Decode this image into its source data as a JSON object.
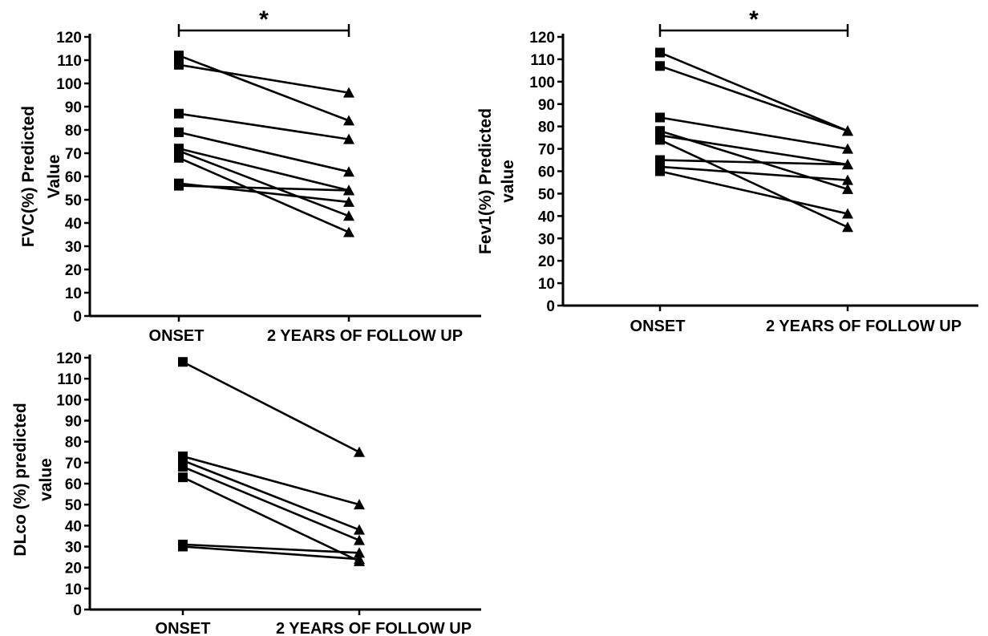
{
  "chart_data": [
    {
      "type": "line",
      "id": "fvc",
      "ylabel": [
        "FVC(%) Predicted",
        "Value"
      ],
      "categories": [
        "ONSET",
        "2 YEARS OF FOLLOW UP"
      ],
      "ylim": [
        0,
        120
      ],
      "yticks": [
        0,
        10,
        20,
        30,
        40,
        50,
        60,
        70,
        80,
        90,
        100,
        110,
        120
      ],
      "significance": "*",
      "series": [
        {
          "values": [
            112,
            84
          ]
        },
        {
          "values": [
            108,
            96
          ]
        },
        {
          "values": [
            87,
            76
          ]
        },
        {
          "values": [
            79,
            62
          ]
        },
        {
          "values": [
            72,
            54
          ]
        },
        {
          "values": [
            71,
            43
          ]
        },
        {
          "values": [
            68,
            36
          ]
        },
        {
          "values": [
            57,
            49
          ]
        },
        {
          "values": [
            56,
            54
          ]
        }
      ]
    },
    {
      "type": "line",
      "id": "fev1",
      "ylabel": [
        "Fev1(%) Predicted",
        "value"
      ],
      "categories": [
        "ONSET",
        "2 YEARS OF FOLLOW UP"
      ],
      "ylim": [
        0,
        120
      ],
      "yticks": [
        0,
        10,
        20,
        30,
        40,
        50,
        60,
        70,
        80,
        90,
        100,
        110,
        120
      ],
      "significance": "*",
      "series": [
        {
          "values": [
            113,
            78
          ]
        },
        {
          "values": [
            107,
            78
          ]
        },
        {
          "values": [
            84,
            70
          ]
        },
        {
          "values": [
            78,
            52
          ]
        },
        {
          "values": [
            76,
            63
          ]
        },
        {
          "values": [
            74,
            35
          ]
        },
        {
          "values": [
            65,
            63
          ]
        },
        {
          "values": [
            62,
            56
          ]
        },
        {
          "values": [
            60,
            41
          ]
        }
      ]
    },
    {
      "type": "line",
      "id": "dlco",
      "ylabel": [
        "DLco (%) predicted",
        "value"
      ],
      "categories": [
        "ONSET",
        "2 YEARS OF FOLLOW UP"
      ],
      "ylim": [
        0,
        120
      ],
      "yticks": [
        0,
        10,
        20,
        30,
        40,
        50,
        60,
        70,
        80,
        90,
        100,
        110,
        120
      ],
      "series": [
        {
          "values": [
            118,
            75
          ]
        },
        {
          "values": [
            73,
            50
          ]
        },
        {
          "values": [
            71,
            38
          ]
        },
        {
          "values": [
            68,
            33
          ]
        },
        {
          "values": [
            63,
            23
          ]
        },
        {
          "values": [
            31,
            27
          ]
        },
        {
          "values": [
            30,
            24
          ]
        }
      ]
    }
  ]
}
